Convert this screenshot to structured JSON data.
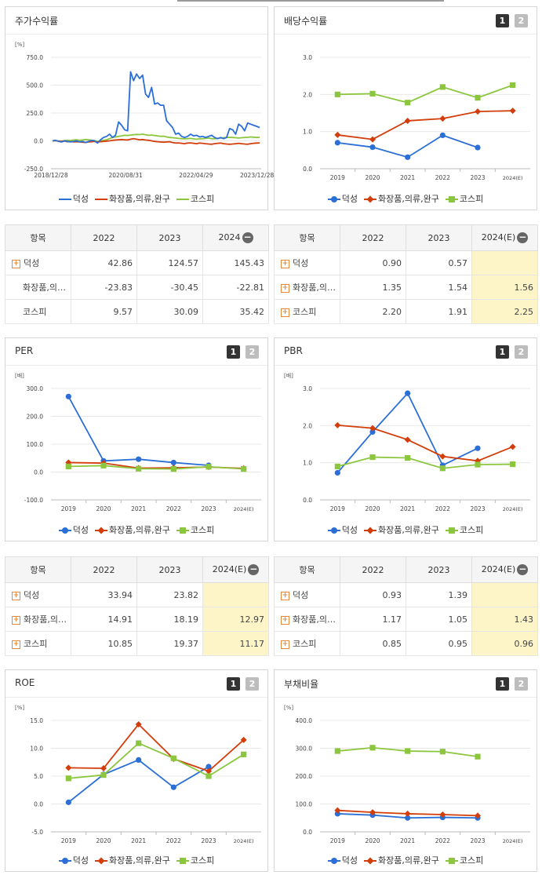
{
  "colors": {
    "s1": "#2b6fd6",
    "s2": "#d23d0a",
    "s3": "#8cc63f"
  },
  "legend": [
    "덕성",
    "화장품,의류,완구",
    "코스피"
  ],
  "panels": {
    "stock": {
      "title": "주가수익률"
    },
    "dividend": {
      "title": "배당수익률",
      "btn1": "1",
      "btn2": "2"
    },
    "per": {
      "title": "PER",
      "btn1": "1",
      "btn2": "2"
    },
    "pbr": {
      "title": "PBR",
      "btn1": "1",
      "btn2": "2"
    },
    "roe": {
      "title": "ROE",
      "btn1": "1",
      "btn2": "2"
    },
    "debt": {
      "title": "부채비율",
      "btn1": "1",
      "btn2": "2"
    }
  },
  "tables": {
    "stock": {
      "headers": [
        "항목",
        "2022",
        "2023",
        "2024"
      ],
      "rows": [
        {
          "name": "덕성",
          "plus": true,
          "values": [
            "42.86",
            "124.57",
            "145.43"
          ]
        },
        {
          "name": "화장품,의…",
          "plus": false,
          "values": [
            "-23.83",
            "-30.45",
            "-22.81"
          ]
        },
        {
          "name": "코스피",
          "plus": false,
          "values": [
            "9.57",
            "30.09",
            "35.42"
          ]
        }
      ]
    },
    "dividend": {
      "headers": [
        "항목",
        "2022",
        "2023",
        "2024(E)"
      ],
      "rows": [
        {
          "name": "덕성",
          "plus": true,
          "values": [
            "0.90",
            "0.57",
            ""
          ]
        },
        {
          "name": "화장품,의…",
          "plus": true,
          "values": [
            "1.35",
            "1.54",
            "1.56"
          ]
        },
        {
          "name": "코스피",
          "plus": true,
          "values": [
            "2.20",
            "1.91",
            "2.25"
          ]
        }
      ]
    },
    "per": {
      "headers": [
        "항목",
        "2022",
        "2023",
        "2024(E)"
      ],
      "rows": [
        {
          "name": "덕성",
          "plus": true,
          "values": [
            "33.94",
            "23.82",
            ""
          ]
        },
        {
          "name": "화장품,의…",
          "plus": true,
          "values": [
            "14.91",
            "18.19",
            "12.97"
          ]
        },
        {
          "name": "코스피",
          "plus": true,
          "values": [
            "10.85",
            "19.37",
            "11.17"
          ]
        }
      ]
    },
    "pbr": {
      "headers": [
        "항목",
        "2022",
        "2023",
        "2024(E)"
      ],
      "rows": [
        {
          "name": "덕성",
          "plus": true,
          "values": [
            "0.93",
            "1.39",
            ""
          ]
        },
        {
          "name": "화장품,의…",
          "plus": true,
          "values": [
            "1.17",
            "1.05",
            "1.43"
          ]
        },
        {
          "name": "코스피",
          "plus": true,
          "values": [
            "0.85",
            "0.95",
            "0.96"
          ]
        }
      ]
    }
  },
  "chart_data": [
    {
      "id": "stock",
      "type": "line",
      "ylabel": "[%]",
      "ylim": [
        -250,
        750
      ],
      "yticks": [
        "750.0",
        "500.0",
        "250.0",
        "0.0",
        "-250.0"
      ],
      "xticks": [
        "2018/12/28",
        "2020/08/31",
        "2022/04/29",
        "2023/12/28"
      ],
      "series": [
        {
          "name": "덕성",
          "values": [
            0,
            5,
            -5,
            -10,
            0,
            -5,
            -10,
            -5,
            0,
            -10,
            -5,
            -15,
            -5,
            5,
            0,
            -20,
            10,
            30,
            40,
            60,
            30,
            50,
            170,
            140,
            100,
            90,
            620,
            540,
            600,
            560,
            590,
            420,
            390,
            480,
            330,
            340,
            320,
            320,
            180,
            150,
            120,
            60,
            70,
            40,
            30,
            40,
            60,
            45,
            50,
            35,
            40,
            30,
            40,
            50,
            30,
            20,
            30,
            20,
            30,
            110,
            100,
            60,
            150,
            130,
            90,
            160,
            150,
            140,
            130,
            120
          ]
        },
        {
          "name": "화장품,의류,완구",
          "values": [
            0,
            2,
            -3,
            -5,
            -2,
            -8,
            -6,
            -10,
            -8,
            -10,
            -12,
            -15,
            -10,
            -8,
            -5,
            -10,
            -8,
            -5,
            -2,
            0,
            5,
            8,
            10,
            12,
            10,
            8,
            15,
            20,
            15,
            10,
            12,
            8,
            5,
            0,
            -5,
            -8,
            -10,
            -12,
            -10,
            -8,
            -15,
            -20,
            -18,
            -22,
            -25,
            -20,
            -18,
            -22,
            -25,
            -20,
            -22,
            -25,
            -28,
            -30,
            -25,
            -22,
            -20,
            -25,
            -28,
            -30,
            -28,
            -25,
            -22,
            -25,
            -28,
            -30,
            -25,
            -22,
            -20,
            -18
          ]
        },
        {
          "name": "코스피",
          "values": [
            0,
            3,
            0,
            -2,
            2,
            5,
            3,
            8,
            10,
            5,
            8,
            12,
            10,
            5,
            3,
            -5,
            0,
            5,
            10,
            20,
            30,
            35,
            40,
            45,
            50,
            48,
            52,
            55,
            58,
            56,
            60,
            55,
            50,
            52,
            48,
            45,
            40,
            42,
            35,
            30,
            28,
            25,
            22,
            20,
            18,
            20,
            22,
            18,
            15,
            18,
            20,
            22,
            25,
            20,
            18,
            22,
            25,
            28,
            30,
            32,
            30,
            28,
            25,
            28,
            30,
            32,
            35,
            33,
            30,
            32
          ]
        }
      ]
    },
    {
      "id": "dividend",
      "type": "line",
      "ylim": [
        0,
        3
      ],
      "yticks": [
        "3.0",
        "2.0",
        "1.0",
        "0.0"
      ],
      "categories": [
        "2019",
        "2020",
        "2021",
        "2022",
        "2023",
        "2024(E)"
      ],
      "series": [
        {
          "name": "덕성",
          "values": [
            0.7,
            0.58,
            0.31,
            0.9,
            0.57,
            null
          ]
        },
        {
          "name": "화장품,의류,완구",
          "values": [
            0.91,
            0.79,
            1.29,
            1.35,
            1.54,
            1.56
          ]
        },
        {
          "name": "코스피",
          "values": [
            2.0,
            2.02,
            1.78,
            2.2,
            1.91,
            2.25
          ]
        }
      ]
    },
    {
      "id": "per",
      "type": "line",
      "ylabel": "[배]",
      "ylim": [
        -100,
        300
      ],
      "yticks": [
        "300.0",
        "200.0",
        "100.0",
        "0.0",
        "-100.0"
      ],
      "categories": [
        "2019",
        "2020",
        "2021",
        "2022",
        "2023",
        "2024(E)"
      ],
      "series": [
        {
          "name": "덕성",
          "values": [
            271,
            40,
            46,
            34,
            24,
            null
          ]
        },
        {
          "name": "화장품,의류,완구",
          "values": [
            34,
            32,
            14,
            15,
            18,
            13
          ]
        },
        {
          "name": "코스피",
          "values": [
            20,
            23,
            12,
            11,
            19,
            11
          ]
        }
      ]
    },
    {
      "id": "pbr",
      "type": "line",
      "ylabel": "[배]",
      "ylim": [
        0,
        3
      ],
      "yticks": [
        "3.0",
        "2.0",
        "1.0",
        "0.0"
      ],
      "categories": [
        "2019",
        "2020",
        "2021",
        "2022",
        "2023",
        "2024(E)"
      ],
      "series": [
        {
          "name": "덕성",
          "values": [
            0.73,
            1.83,
            2.87,
            0.93,
            1.39,
            null
          ]
        },
        {
          "name": "화장품,의류,완구",
          "values": [
            2.01,
            1.93,
            1.62,
            1.17,
            1.05,
            1.43
          ]
        },
        {
          "name": "코스피",
          "values": [
            0.9,
            1.15,
            1.13,
            0.85,
            0.95,
            0.96
          ]
        }
      ]
    },
    {
      "id": "roe",
      "type": "line",
      "ylabel": "[%]",
      "ylim": [
        -5,
        15
      ],
      "yticks": [
        "15.0",
        "10.0",
        "5.0",
        "0.0",
        "-5.0"
      ],
      "categories": [
        "2019",
        "2020",
        "2021",
        "2022",
        "2023",
        "2024(E)"
      ],
      "series": [
        {
          "name": "덕성",
          "values": [
            0.3,
            5.3,
            7.9,
            3.0,
            6.7,
            null
          ]
        },
        {
          "name": "화장품,의류,완구",
          "values": [
            6.5,
            6.4,
            14.3,
            8.1,
            5.9,
            11.5
          ]
        },
        {
          "name": "코스피",
          "values": [
            4.6,
            5.2,
            10.9,
            8.2,
            5.0,
            8.9
          ]
        }
      ]
    },
    {
      "id": "debt",
      "type": "line",
      "ylabel": "[%]",
      "ylim": [
        0,
        400
      ],
      "yticks": [
        "400.0",
        "300.0",
        "200.0",
        "100.0",
        "0.0"
      ],
      "categories": [
        "2019",
        "2020",
        "2021",
        "2022",
        "2023",
        "2024(E)"
      ],
      "series": [
        {
          "name": "덕성",
          "values": [
            65,
            60,
            50,
            52,
            50,
            null
          ]
        },
        {
          "name": "화장품,의류,완구",
          "values": [
            77,
            70,
            65,
            62,
            58,
            null
          ]
        },
        {
          "name": "코스피",
          "values": [
            290,
            302,
            290,
            288,
            270,
            null
          ]
        }
      ]
    }
  ]
}
